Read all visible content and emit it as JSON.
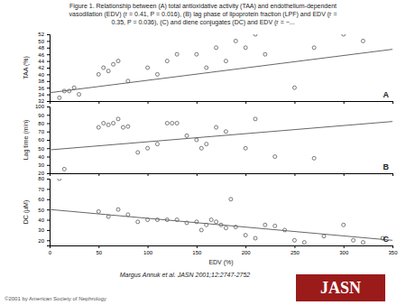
{
  "title": "Figure 1. Relationship between (A) total antioxidative activity (TAA) and endothelium-dependent\nvasodilation (EDV) (r = 0.41, P = 0.016), (B) lag phase of lipoprotein fraction (LPF) and EDV (r =\n0.35, P = 0.036), (C) and diene conjugates (DC) and EDV (r = −...",
  "annotations": [
    "Margus Annuk et al. JASN 2001;12:2747-2752",
    "©2001 by American Society of Nephrology",
    {
      "text": "JASN",
      "color": "#9b1b1b"
    }
  ],
  "chart_data": [
    {
      "type": "scatter",
      "ylabel": "TAA (%)",
      "annotations": [
        "A"
      ],
      "tick_labels": "y",
      "xlim": [
        0,
        350
      ],
      "xticks": [
        0,
        50,
        100,
        150,
        200,
        250,
        300,
        350
      ],
      "ylim": [
        32,
        52
      ],
      "yticks": [
        32,
        34,
        36,
        38,
        40,
        42,
        44,
        46,
        48,
        50,
        52
      ],
      "series": [
        {
          "type": "scatter",
          "color": "#444444",
          "marker": "open-circle",
          "x": [
            10,
            15,
            20,
            25,
            30,
            50,
            55,
            60,
            65,
            70,
            80,
            100,
            110,
            120,
            130,
            150,
            160,
            170,
            180,
            190,
            200,
            210,
            220,
            250,
            270,
            300,
            320
          ],
          "values": [
            33,
            35,
            35,
            36,
            34,
            40,
            42,
            41,
            43,
            44,
            38,
            42,
            40,
            44,
            46,
            46,
            42,
            48,
            44,
            50,
            48,
            52,
            46,
            36,
            48,
            52,
            50
          ]
        },
        {
          "type": "line",
          "color": "#666666",
          "x": [
            0,
            350
          ],
          "values": [
            34.5,
            47.5
          ]
        }
      ]
    },
    {
      "type": "scatter",
      "ylabel": "Lag time (min)",
      "annotations": [
        "B"
      ],
      "tick_labels": "y",
      "xlim": [
        0,
        350
      ],
      "xticks": [
        0,
        50,
        100,
        150,
        200,
        250,
        300,
        350
      ],
      "ylim": [
        20,
        100
      ],
      "yticks": [
        20,
        30,
        40,
        50,
        60,
        70,
        80,
        90,
        100
      ],
      "series": [
        {
          "type": "scatter",
          "color": "#444444",
          "marker": "open-circle",
          "x": [
            15,
            50,
            55,
            60,
            65,
            70,
            75,
            80,
            90,
            100,
            110,
            120,
            125,
            130,
            140,
            150,
            155,
            160,
            170,
            180,
            200,
            210,
            230,
            270
          ],
          "values": [
            25,
            75,
            80,
            78,
            80,
            85,
            75,
            76,
            45,
            50,
            55,
            80,
            80,
            80,
            65,
            60,
            50,
            55,
            75,
            70,
            50,
            85,
            40,
            38
          ]
        },
        {
          "type": "line",
          "color": "#666666",
          "x": [
            0,
            350
          ],
          "values": [
            48,
            82
          ]
        }
      ]
    },
    {
      "type": "scatter",
      "ylabel": "DC (µM)",
      "xlabel": "EDV (%)",
      "annotations": [
        "C"
      ],
      "xlim": [
        0,
        350
      ],
      "xticks": [
        0,
        50,
        100,
        150,
        200,
        250,
        300,
        350
      ],
      "ylim": [
        15,
        80
      ],
      "yticks": [
        20,
        30,
        40,
        50,
        60,
        70,
        80
      ],
      "series": [
        {
          "type": "scatter",
          "color": "#444444",
          "marker": "open-circle",
          "x": [
            10,
            50,
            60,
            70,
            80,
            90,
            100,
            110,
            120,
            130,
            140,
            150,
            155,
            160,
            165,
            170,
            175,
            180,
            185,
            190,
            200,
            210,
            220,
            230,
            240,
            250,
            260,
            280,
            300,
            310,
            320,
            340
          ],
          "values": [
            80,
            48,
            43,
            50,
            45,
            38,
            40,
            40,
            40,
            40,
            37,
            38,
            30,
            35,
            40,
            38,
            35,
            32,
            60,
            33,
            25,
            22,
            35,
            34,
            30,
            20,
            18,
            24,
            35,
            20,
            18,
            22
          ]
        },
        {
          "type": "line",
          "color": "#666666",
          "x": [
            0,
            350
          ],
          "values": [
            50,
            20
          ]
        }
      ]
    }
  ]
}
